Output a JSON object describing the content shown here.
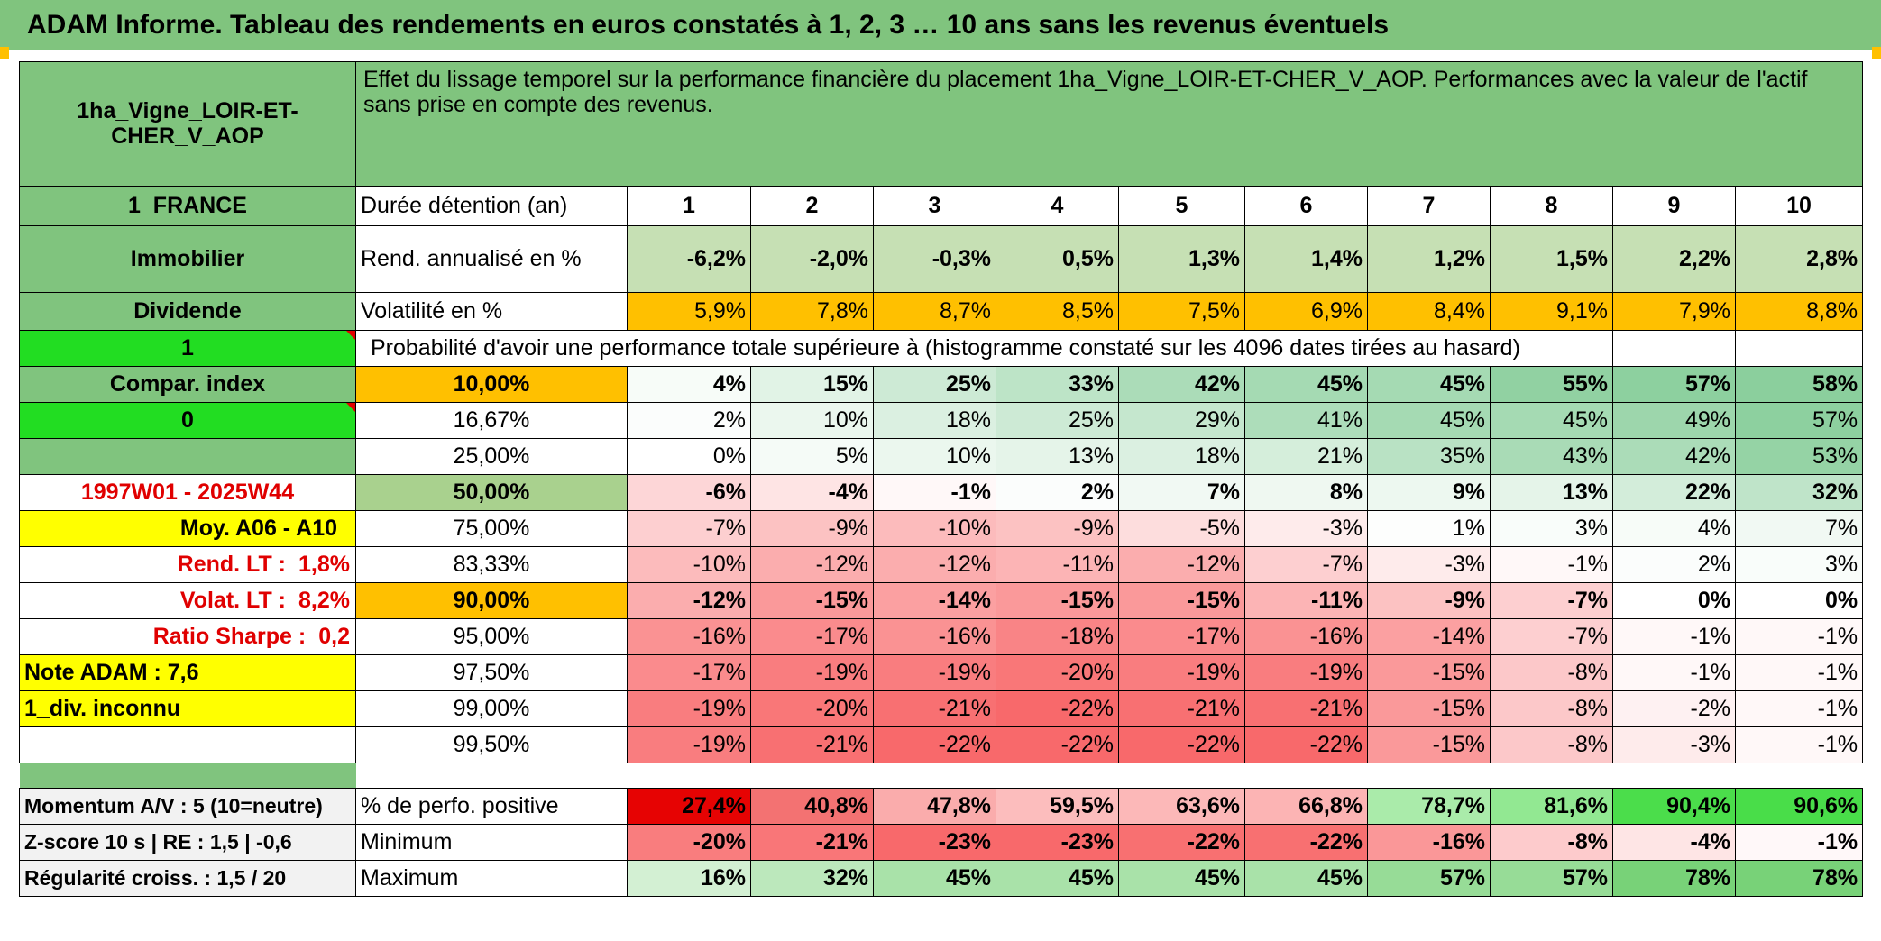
{
  "banner": "ADAM Informe. Tableau des rendements en euros constatés à 1, 2, 3 … 10 ans sans les revenus éventuels",
  "asset_name": "1ha_Vigne_LOIR-ET-CHER_V_AOP",
  "description": "Effet du lissage temporel sur la performance financière du placement 1ha_Vigne_LOIR-ET-CHER_V_AOP. Performances avec la valeur de l'actif sans prise en compte des revenus.",
  "sidebar": {
    "country": "1_FRANCE",
    "category": "Immobilier",
    "dividend_label": "Dividende",
    "dividend_value": "1",
    "index_label": "Compar. index",
    "index_value": "0",
    "period": "1997W01 - 2025W44",
    "avg": "Moy. A06 - A10",
    "rend_lt_label": "Rend. LT :",
    "rend_lt_value": "1,8%",
    "volat_lt_label": "Volat. LT :",
    "volat_lt_value": "8,2%",
    "sharpe_label": "Ratio Sharpe :",
    "sharpe_value": "0,2",
    "note": "Note ADAM : 7,6",
    "div": "1_div. inconnu",
    "momentum": "Momentum A/V : 5 (10=neutre)",
    "zscore": "Z-score 10 s | RE : 1,5 | -0,6",
    "regularity": "Régularité croiss. : 1,5 / 20"
  },
  "labels": {
    "duration": "Durée détention (an)",
    "annual_return": "Rend. annualisé en %",
    "volatility": "Volatilité en %",
    "probability": "Probabilité d'avoir une performance totale supérieure à (histogramme constaté sur les 4096 dates tirées au hasard)",
    "positive": "% de perfo. positive",
    "minimum": "Minimum",
    "maximum": "Maximum"
  },
  "years": [
    "1",
    "2",
    "3",
    "4",
    "5",
    "6",
    "7",
    "8",
    "9",
    "10"
  ],
  "annual_return": [
    "-6,2%",
    "-2,0%",
    "-0,3%",
    "0,5%",
    "1,3%",
    "1,4%",
    "1,2%",
    "1,5%",
    "2,2%",
    "2,8%"
  ],
  "volatility": [
    "5,9%",
    "7,8%",
    "8,7%",
    "8,5%",
    "7,5%",
    "6,9%",
    "8,4%",
    "9,1%",
    "7,9%",
    "8,8%"
  ],
  "quantiles": [
    {
      "p": "10,00%",
      "v": [
        "4%",
        "15%",
        "25%",
        "33%",
        "42%",
        "45%",
        "45%",
        "55%",
        "57%",
        "58%"
      ]
    },
    {
      "p": "16,67%",
      "v": [
        "2%",
        "10%",
        "18%",
        "25%",
        "29%",
        "41%",
        "45%",
        "45%",
        "49%",
        "57%"
      ]
    },
    {
      "p": "25,00%",
      "v": [
        "0%",
        "5%",
        "10%",
        "13%",
        "18%",
        "21%",
        "35%",
        "43%",
        "42%",
        "53%"
      ]
    },
    {
      "p": "50,00%",
      "v": [
        "-6%",
        "-4%",
        "-1%",
        "2%",
        "7%",
        "8%",
        "9%",
        "13%",
        "22%",
        "32%"
      ]
    },
    {
      "p": "75,00%",
      "v": [
        "-7%",
        "-9%",
        "-10%",
        "-9%",
        "-5%",
        "-3%",
        "1%",
        "3%",
        "4%",
        "7%"
      ]
    },
    {
      "p": "83,33%",
      "v": [
        "-10%",
        "-12%",
        "-12%",
        "-11%",
        "-12%",
        "-7%",
        "-3%",
        "-1%",
        "2%",
        "3%"
      ]
    },
    {
      "p": "90,00%",
      "v": [
        "-12%",
        "-15%",
        "-14%",
        "-15%",
        "-15%",
        "-11%",
        "-9%",
        "-7%",
        "0%",
        "0%"
      ]
    },
    {
      "p": "95,00%",
      "v": [
        "-16%",
        "-17%",
        "-16%",
        "-18%",
        "-17%",
        "-16%",
        "-14%",
        "-7%",
        "-1%",
        "-1%"
      ]
    },
    {
      "p": "97,50%",
      "v": [
        "-17%",
        "-19%",
        "-19%",
        "-20%",
        "-19%",
        "-19%",
        "-15%",
        "-8%",
        "-1%",
        "-1%"
      ]
    },
    {
      "p": "99,00%",
      "v": [
        "-19%",
        "-20%",
        "-21%",
        "-22%",
        "-21%",
        "-21%",
        "-15%",
        "-8%",
        "-2%",
        "-1%"
      ]
    },
    {
      "p": "99,50%",
      "v": [
        "-19%",
        "-21%",
        "-22%",
        "-22%",
        "-22%",
        "-22%",
        "-15%",
        "-8%",
        "-3%",
        "-1%"
      ]
    }
  ],
  "positive": [
    "27,4%",
    "40,8%",
    "47,8%",
    "59,5%",
    "63,6%",
    "66,8%",
    "78,7%",
    "81,6%",
    "90,4%",
    "90,6%"
  ],
  "minimum": [
    "-20%",
    "-21%",
    "-23%",
    "-23%",
    "-22%",
    "-22%",
    "-16%",
    "-8%",
    "-4%",
    "-1%"
  ],
  "maximum": [
    "16%",
    "32%",
    "45%",
    "45%",
    "45%",
    "45%",
    "57%",
    "57%",
    "78%",
    "78%"
  ]
}
